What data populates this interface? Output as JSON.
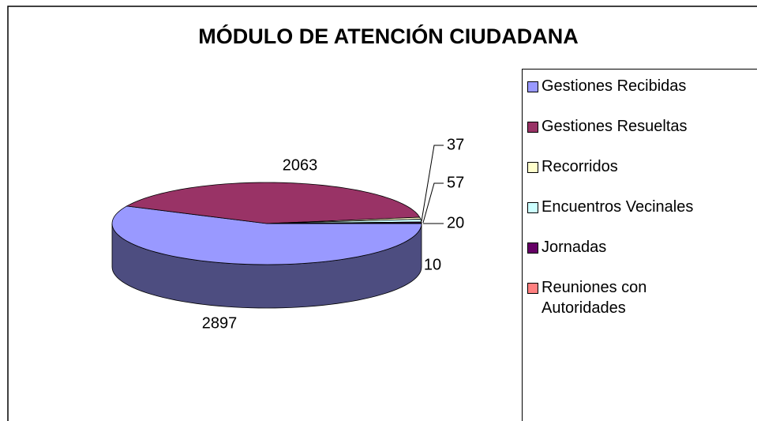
{
  "chart_data": {
    "type": "pie",
    "title": "MÓDULO DE ATENCIÓN CIUDADANA",
    "categories": [
      "Gestiones Recibidas",
      "Gestiones Resueltas",
      "Recorridos",
      "Encuentros Vecinales",
      "Jornadas",
      "Reuniones con Autoridades"
    ],
    "values": [
      2897,
      2063,
      37,
      57,
      20,
      10
    ],
    "colors": [
      "#9999ff",
      "#993366",
      "#ffffcc",
      "#ccffff",
      "#660066",
      "#ff8080"
    ],
    "legend": "right"
  }
}
